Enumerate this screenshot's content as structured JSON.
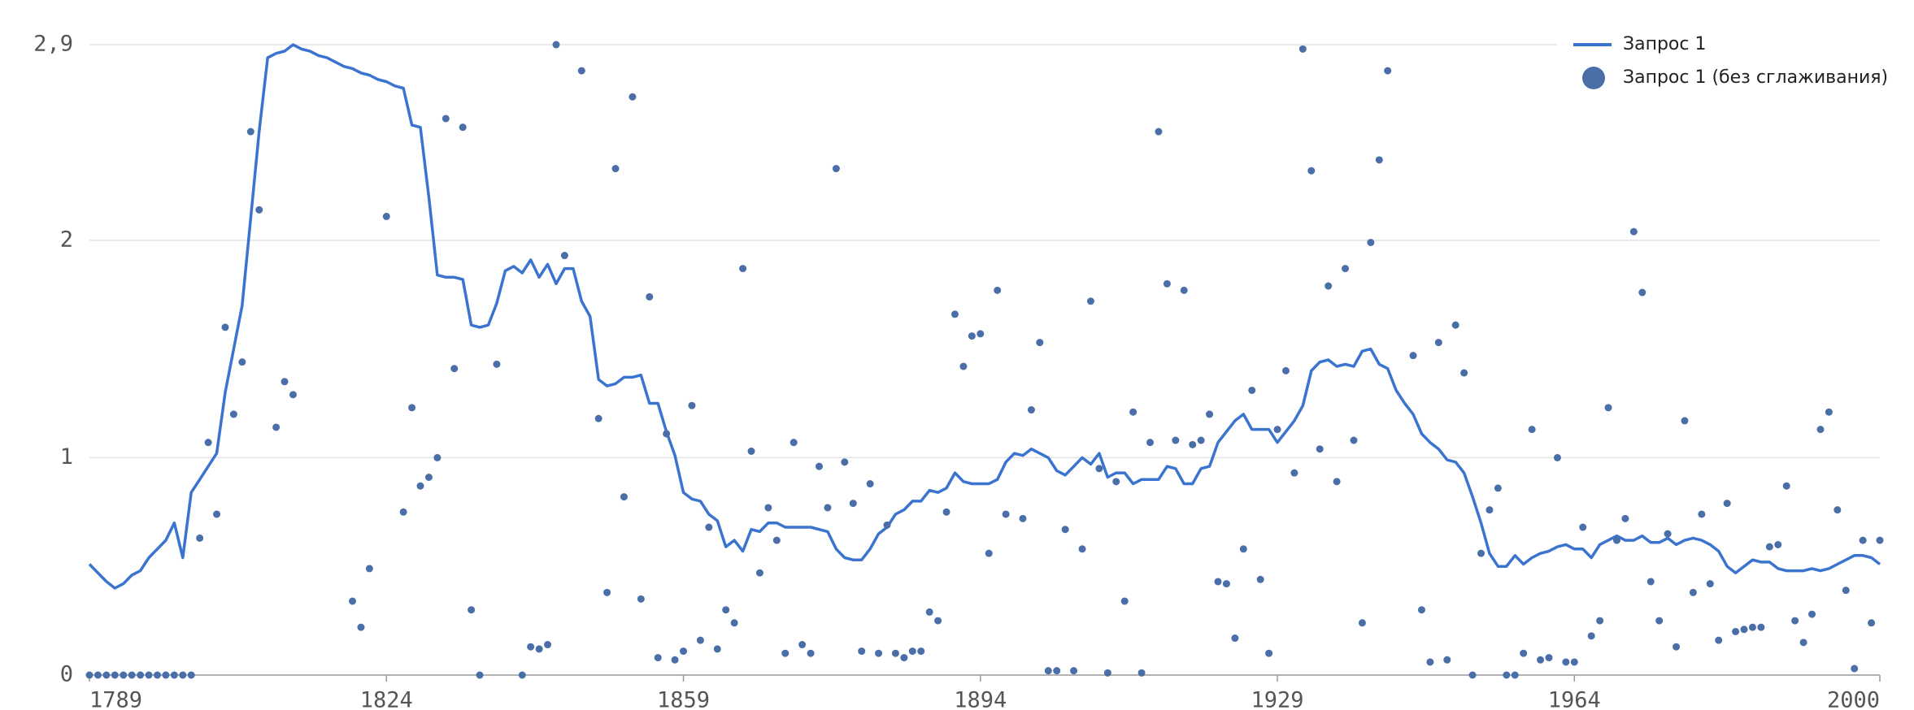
{
  "chart_data": {
    "type": "line",
    "x": [
      1789,
      1790,
      1791,
      1792,
      1793,
      1794,
      1795,
      1796,
      1797,
      1798,
      1799,
      1800,
      1801,
      1802,
      1803,
      1804,
      1805,
      1806,
      1807,
      1808,
      1809,
      1810,
      1811,
      1812,
      1813,
      1814,
      1815,
      1816,
      1817,
      1818,
      1819,
      1820,
      1821,
      1822,
      1823,
      1824,
      1825,
      1826,
      1827,
      1828,
      1829,
      1830,
      1831,
      1832,
      1833,
      1834,
      1835,
      1836,
      1837,
      1838,
      1839,
      1840,
      1841,
      1842,
      1843,
      1844,
      1845,
      1846,
      1847,
      1848,
      1849,
      1850,
      1851,
      1852,
      1853,
      1854,
      1855,
      1856,
      1857,
      1858,
      1859,
      1860,
      1861,
      1862,
      1863,
      1864,
      1865,
      1866,
      1867,
      1868,
      1869,
      1870,
      1871,
      1872,
      1873,
      1874,
      1875,
      1876,
      1877,
      1878,
      1879,
      1880,
      1881,
      1882,
      1883,
      1884,
      1885,
      1886,
      1887,
      1888,
      1889,
      1890,
      1891,
      1892,
      1893,
      1894,
      1895,
      1896,
      1897,
      1898,
      1899,
      1900,
      1901,
      1902,
      1903,
      1904,
      1905,
      1906,
      1907,
      1908,
      1909,
      1910,
      1911,
      1912,
      1913,
      1914,
      1915,
      1916,
      1917,
      1918,
      1919,
      1920,
      1921,
      1922,
      1923,
      1924,
      1925,
      1926,
      1927,
      1928,
      1929,
      1930,
      1931,
      1932,
      1933,
      1934,
      1935,
      1936,
      1937,
      1938,
      1939,
      1940,
      1941,
      1942,
      1943,
      1944,
      1945,
      1946,
      1947,
      1948,
      1949,
      1950,
      1951,
      1952,
      1953,
      1954,
      1955,
      1956,
      1957,
      1958,
      1959,
      1960,
      1961,
      1962,
      1963,
      1964,
      1965,
      1966,
      1967,
      1968,
      1969,
      1970,
      1971,
      1972,
      1973,
      1974,
      1975,
      1976,
      1977,
      1978,
      1979,
      1980,
      1981,
      1982,
      1983,
      1984,
      1985,
      1986,
      1987,
      1988,
      1989,
      1990,
      1991,
      1992,
      1993,
      1994,
      1995,
      1996,
      1997,
      1998,
      1999,
      2000
    ],
    "series": [
      {
        "name": "Запрос 1",
        "type": "line",
        "color": "#3b74cf",
        "values": [
          0.51,
          0.47,
          0.43,
          0.4,
          0.42,
          0.46,
          0.48,
          0.54,
          0.58,
          0.62,
          0.7,
          0.54,
          0.84,
          0.9,
          0.96,
          1.02,
          1.3,
          1.5,
          1.7,
          2.1,
          2.5,
          2.84,
          2.86,
          2.87,
          2.9,
          2.88,
          2.87,
          2.85,
          2.84,
          2.82,
          2.8,
          2.79,
          2.77,
          2.76,
          2.74,
          2.73,
          2.71,
          2.7,
          2.53,
          2.52,
          2.2,
          1.84,
          1.83,
          1.83,
          1.82,
          1.61,
          1.6,
          1.61,
          1.71,
          1.86,
          1.88,
          1.85,
          1.91,
          1.83,
          1.89,
          1.8,
          1.87,
          1.87,
          1.72,
          1.65,
          1.36,
          1.33,
          1.34,
          1.37,
          1.37,
          1.38,
          1.25,
          1.25,
          1.12,
          1.01,
          0.84,
          0.81,
          0.8,
          0.74,
          0.71,
          0.59,
          0.62,
          0.57,
          0.67,
          0.66,
          0.7,
          0.7,
          0.68,
          0.68,
          0.68,
          0.68,
          0.67,
          0.66,
          0.58,
          0.54,
          0.53,
          0.53,
          0.58,
          0.65,
          0.68,
          0.74,
          0.76,
          0.8,
          0.8,
          0.85,
          0.84,
          0.86,
          0.93,
          0.89,
          0.88,
          0.88,
          0.88,
          0.9,
          0.98,
          1.02,
          1.01,
          1.04,
          1.02,
          1.0,
          0.94,
          0.92,
          0.96,
          1.0,
          0.97,
          1.02,
          0.91,
          0.93,
          0.93,
          0.88,
          0.9,
          0.9,
          0.9,
          0.96,
          0.95,
          0.88,
          0.88,
          0.95,
          0.96,
          1.07,
          1.12,
          1.17,
          1.2,
          1.13,
          1.13,
          1.13,
          1.07,
          1.12,
          1.17,
          1.24,
          1.4,
          1.44,
          1.45,
          1.42,
          1.43,
          1.42,
          1.49,
          1.5,
          1.43,
          1.41,
          1.31,
          1.25,
          1.2,
          1.11,
          1.07,
          1.04,
          0.99,
          0.98,
          0.93,
          0.82,
          0.7,
          0.56,
          0.5,
          0.5,
          0.55,
          0.51,
          0.54,
          0.56,
          0.57,
          0.59,
          0.6,
          0.58,
          0.58,
          0.54,
          0.6,
          0.62,
          0.64,
          0.62,
          0.62,
          0.64,
          0.61,
          0.61,
          0.63,
          0.6,
          0.62,
          0.63,
          0.62,
          0.6,
          0.57,
          0.5,
          0.47,
          0.5,
          0.53,
          0.52,
          0.52,
          0.49,
          0.48,
          0.48,
          0.48,
          0.49,
          0.48,
          0.49,
          0.51,
          0.53,
          0.55,
          0.55,
          0.54,
          0.51
        ]
      },
      {
        "name": "Запрос 1 (без сглаживания)",
        "type": "scatter",
        "color": "#4a6ea8",
        "values": [
          0,
          0,
          0,
          0,
          0,
          0,
          0,
          0,
          0,
          0,
          0,
          0,
          0,
          0.63,
          1.07,
          0.74,
          1.6,
          1.2,
          1.44,
          2.5,
          2.14,
          null,
          1.14,
          1.35,
          1.29,
          null,
          null,
          null,
          null,
          null,
          null,
          0.34,
          0.22,
          0.49,
          null,
          2.11,
          null,
          0.75,
          1.23,
          0.87,
          0.91,
          1.0,
          2.56,
          1.41,
          2.52,
          0.3,
          0,
          null,
          1.43,
          null,
          null,
          0,
          0.13,
          0.12,
          0.14,
          2.9,
          1.93,
          null,
          2.78,
          null,
          1.18,
          0.38,
          2.33,
          0.82,
          2.66,
          0.35,
          1.74,
          0.08,
          1.11,
          0.07,
          0.11,
          1.24,
          0.16,
          0.68,
          0.12,
          0.3,
          0.24,
          1.87,
          1.03,
          0.47,
          0.77,
          0.62,
          0.1,
          1.07,
          0.14,
          0.1,
          0.96,
          0.77,
          2.33,
          0.98,
          0.79,
          0.11,
          0.88,
          0.1,
          0.69,
          0.1,
          0.08,
          0.11,
          0.11,
          0.29,
          0.25,
          0.75,
          1.66,
          1.42,
          1.56,
          1.57,
          0.56,
          1.77,
          0.74,
          null,
          0.72,
          1.22,
          1.53,
          0.02,
          0.02,
          0.67,
          0.02,
          0.58,
          1.72,
          0.95,
          0.01,
          0.89,
          0.34,
          1.21,
          0.01,
          1.07,
          2.5,
          1.8,
          1.08,
          1.77,
          1.06,
          1.08,
          1.2,
          0.43,
          0.42,
          0.17,
          0.58,
          1.31,
          0.44,
          0.1,
          1.13,
          1.4,
          0.93,
          2.88,
          2.32,
          1.04,
          1.79,
          0.89,
          1.87,
          1.08,
          0.24,
          1.99,
          2.37,
          2.78,
          null,
          null,
          1.47,
          0.3,
          0.06,
          1.53,
          0.07,
          1.61,
          1.39,
          0,
          0.56,
          0.76,
          0.86,
          0,
          0,
          0.1,
          1.13,
          0.07,
          0.08,
          1.0,
          0.06,
          0.06,
          0.68,
          0.18,
          0.25,
          1.23,
          0.62,
          0.72,
          2.04,
          1.76,
          0.43,
          0.25,
          0.65,
          0.13,
          1.17,
          0.38,
          0.74,
          0.42,
          0.16,
          0.79,
          0.2,
          0.21,
          0.22,
          0.22,
          0.59,
          0.6,
          0.87,
          0.25,
          0.15,
          0.28,
          1.13,
          1.21,
          0.76,
          0.39,
          0.03,
          0.62,
          0.24,
          0.62
        ]
      }
    ],
    "xlim": [
      1789,
      2000
    ],
    "xticks": [
      1789,
      1824,
      1859,
      1894,
      1929,
      1964,
      2000
    ],
    "ylim": [
      0,
      2.9
    ],
    "yticks": [
      0,
      1,
      2,
      {
        "value": 2.9,
        "label": "2,9"
      }
    ],
    "grid": true,
    "legend": "top-right"
  }
}
